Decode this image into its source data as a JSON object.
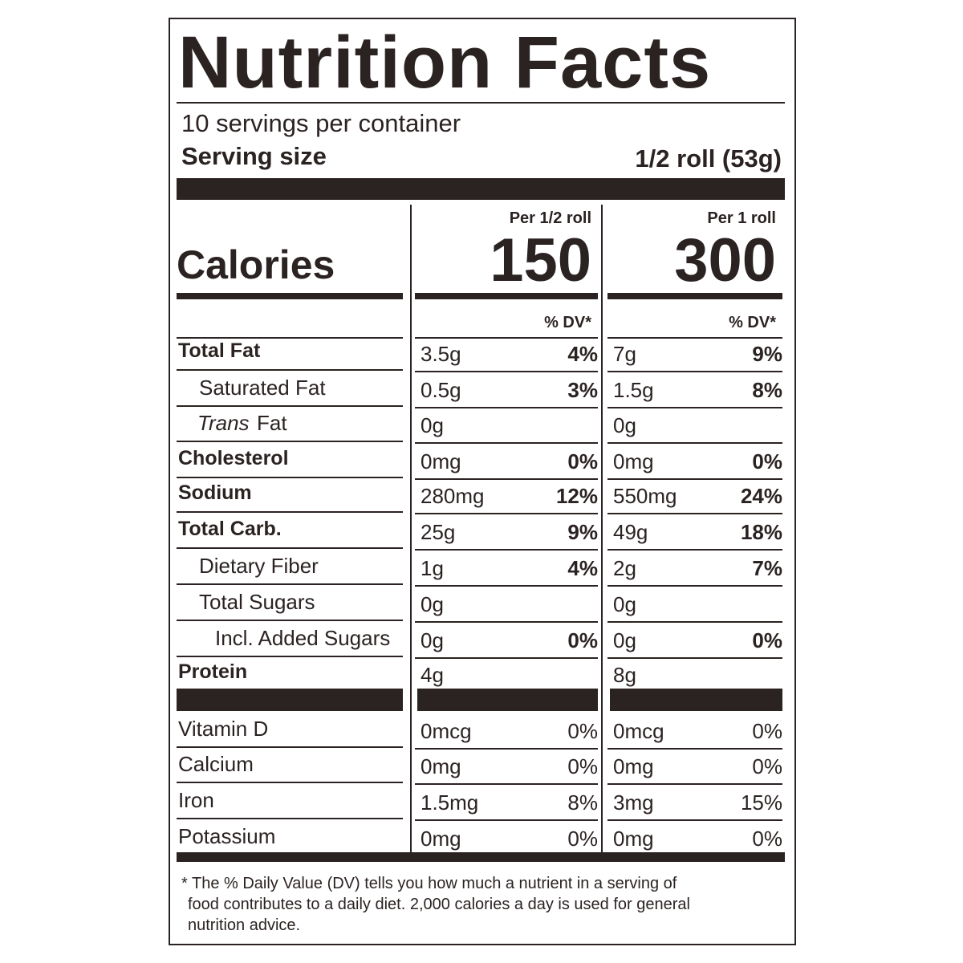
{
  "title": "Nutrition Facts",
  "servings_per_container": "10 servings per container",
  "serving_size": {
    "label": "Serving size",
    "value": "1/2 roll (53g)"
  },
  "calories": {
    "label": "Calories",
    "columns": [
      {
        "header": "Per 1/2 roll",
        "value": "150",
        "dv_header": "% DV*"
      },
      {
        "header": "Per 1 roll",
        "value": "300",
        "dv_header": "% DV*"
      }
    ]
  },
  "nutrients": [
    {
      "name": "Total Fat",
      "values": [
        {
          "amount": "3.5g",
          "dv": "4%"
        },
        {
          "amount": "7g",
          "dv": "9%"
        }
      ]
    },
    {
      "name": "Saturated Fat",
      "values": [
        {
          "amount": "0.5g",
          "dv": "3%"
        },
        {
          "amount": "1.5g",
          "dv": "8%"
        }
      ]
    },
    {
      "name": [
        "Trans",
        "Fat"
      ],
      "values": [
        {
          "amount": "0g"
        },
        {
          "amount": "0g"
        }
      ]
    },
    {
      "name": "Cholesterol",
      "values": [
        {
          "amount": "0mg",
          "dv": "0%"
        },
        {
          "amount": "0mg",
          "dv": "0%"
        }
      ]
    },
    {
      "name": "Sodium",
      "values": [
        {
          "amount": "280mg",
          "dv": "12%"
        },
        {
          "amount": "550mg",
          "dv": "24%"
        }
      ]
    },
    {
      "name": "Total Carb.",
      "values": [
        {
          "amount": "25g",
          "dv": "9%"
        },
        {
          "amount": "49g",
          "dv": "18%"
        }
      ]
    },
    {
      "name": "Dietary Fiber",
      "values": [
        {
          "amount": "1g",
          "dv": "4%"
        },
        {
          "amount": "2g",
          "dv": "7%"
        }
      ]
    },
    {
      "name": "Total Sugars",
      "values": [
        {
          "amount": "0g"
        },
        {
          "amount": "0g"
        }
      ]
    },
    {
      "name": "Incl. Added Sugars",
      "values": [
        {
          "amount": "0g",
          "dv": "0%"
        },
        {
          "amount": "0g",
          "dv": "0%"
        }
      ]
    },
    {
      "name": "Protein",
      "values": [
        {
          "amount": "4g"
        },
        {
          "amount": "8g"
        }
      ]
    }
  ],
  "vitamins": [
    {
      "name": "Vitamin D",
      "values": [
        {
          "amount": "0mcg",
          "dv": "0%"
        },
        {
          "amount": "0mcg",
          "dv": "0%"
        }
      ]
    },
    {
      "name": "Calcium",
      "values": [
        {
          "amount": "0mg",
          "dv": "0%"
        },
        {
          "amount": "0mg",
          "dv": "0%"
        }
      ]
    },
    {
      "name": "Iron",
      "values": [
        {
          "amount": "1.5mg",
          "dv": "8%"
        },
        {
          "amount": "3mg",
          "dv": "15%"
        }
      ]
    },
    {
      "name": "Potassium",
      "values": [
        {
          "amount": "0mg",
          "dv": "0%"
        },
        {
          "amount": "0mg",
          "dv": "0%"
        }
      ]
    }
  ],
  "footnote": [
    "* The % Daily Value (DV) tells you how much a nutrient in a serving of",
    "food contributes to a daily diet. 2,000 calories a day is used for general",
    "nutrition advice."
  ]
}
